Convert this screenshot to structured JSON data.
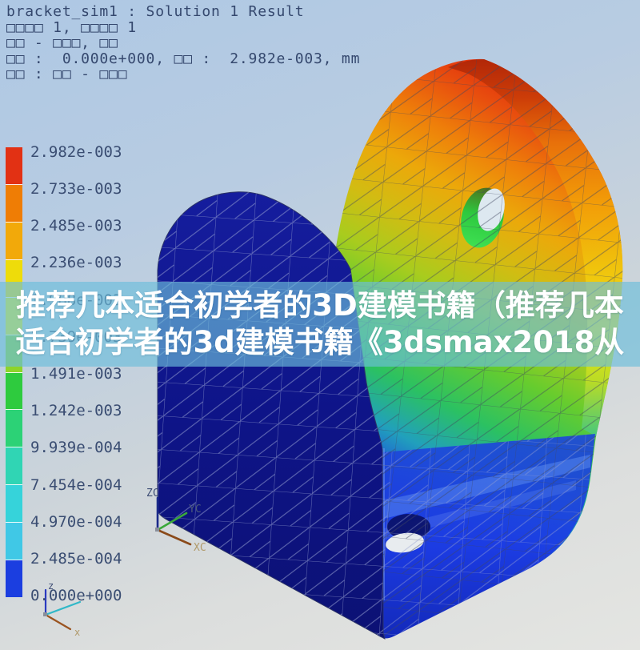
{
  "window": {
    "title_lines": [
      "bracket_sim1 : Solution 1 Result",
      "□□□□ 1, □□□□ 1",
      "□□ - □□□, □□",
      "□□ :  0.000e+000, □□ :  2.982e-003, mm",
      "□□ : □□ - □□□"
    ]
  },
  "legend": {
    "values": [
      "2.982e-003",
      "2.733e-003",
      "2.485e-003",
      "2.236e-003",
      "1.988e-003",
      "1.739e-003",
      "1.491e-003",
      "1.242e-003",
      "9.939e-004",
      "7.454e-004",
      "4.970e-004",
      "2.485e-004",
      "0.000e+000"
    ],
    "segment_colors": [
      "#e23114",
      "#ef7d05",
      "#f2a90a",
      "#eedc0a",
      "#e8ee1c",
      "#8ed42a",
      "#2ecb3e",
      "#2cd276",
      "#30d5b4",
      "#36d3da",
      "#40c8e6",
      "#1b3ee0"
    ],
    "unit": "mm"
  },
  "overlay": {
    "line1": "推荐几本适合初学者的3D建模书籍（推荐几本",
    "line2": "适合初学者的3d建模书籍《3dsmax2018从",
    "band_color": "rgba(108,189,219,0.66)",
    "text_color": "#ffffff"
  },
  "triads": {
    "wcs": {
      "x": "XC",
      "y": "YC",
      "z": "ZC"
    },
    "absolute": {
      "x": "x",
      "z": "z"
    }
  }
}
